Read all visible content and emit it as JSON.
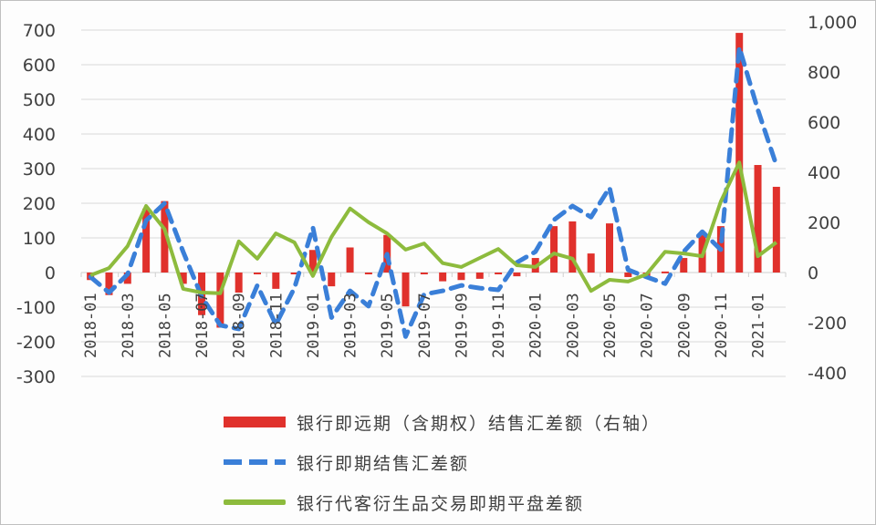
{
  "chart_data": {
    "type": "bar+line",
    "title": "",
    "categories": [
      "2018-01",
      "2018-02",
      "2018-03",
      "2018-04",
      "2018-05",
      "2018-06",
      "2018-07",
      "2018-08",
      "2018-09",
      "2018-10",
      "2018-11",
      "2018-12",
      "2019-01",
      "2019-02",
      "2019-03",
      "2019-04",
      "2019-05",
      "2019-06",
      "2019-07",
      "2019-08",
      "2019-09",
      "2019-10",
      "2019-11",
      "2019-12",
      "2020-01",
      "2020-02",
      "2020-03",
      "2020-04",
      "2020-05",
      "2020-06",
      "2020-07",
      "2020-08",
      "2020-09",
      "2020-10",
      "2020-11",
      "2020-12",
      "2021-01",
      "2021-02"
    ],
    "x_tick_labels": [
      "2018-01",
      "2018-03",
      "2018-05",
      "2018-07",
      "2018-09",
      "2018-11",
      "2019-01",
      "2019-03",
      "2019-05",
      "2019-07",
      "2019-09",
      "2019-11",
      "2020-01",
      "2020-03",
      "2020-05",
      "2020-07",
      "2020-09",
      "2020-11",
      "2021-01"
    ],
    "left_axis": {
      "ylim": [
        -300,
        700
      ],
      "ticks": [
        "700",
        "600",
        "500",
        "400",
        "300",
        "200",
        "100",
        "0",
        "-100",
        "-200",
        "-300"
      ]
    },
    "right_axis": {
      "ylim": [
        -400,
        1000
      ],
      "ticks": [
        "1,000",
        "800",
        "600",
        "400",
        "200",
        "0",
        "-200",
        "-400"
      ]
    },
    "grid": true,
    "legend_position": "bottom",
    "series": [
      {
        "name": "银行即远期（含期权）结售汇差额（右轴）",
        "type": "bar",
        "axis": "right",
        "color": "#e0312c",
        "values": [
          -30,
          -90,
          -45,
          255,
          285,
          -45,
          -170,
          -220,
          -80,
          -5,
          -65,
          -7,
          90,
          -55,
          100,
          -7,
          150,
          -135,
          -7,
          -35,
          -30,
          -25,
          -4,
          -15,
          58,
          185,
          204,
          76,
          196,
          -18,
          -15,
          4,
          58,
          149,
          185,
          956,
          429,
          342
        ]
      },
      {
        "name": "银行即期结售汇差额",
        "type": "line",
        "style": "dashed",
        "axis": "left",
        "color": "#3a7fd8",
        "values": [
          -13,
          -58,
          -5,
          150,
          200,
          60,
          -70,
          -152,
          -163,
          -37,
          -150,
          -45,
          130,
          -130,
          -53,
          -97,
          53,
          -185,
          -63,
          -53,
          -37,
          -45,
          -50,
          29,
          60,
          152,
          192,
          160,
          245,
          8,
          -13,
          -32,
          60,
          118,
          66,
          650,
          470,
          310
        ]
      },
      {
        "name": "银行代客衍生品交易即期平盘差额",
        "type": "line",
        "style": "solid",
        "axis": "left",
        "color": "#8dbb3d",
        "values": [
          -8,
          13,
          76,
          192,
          125,
          -47,
          -58,
          -60,
          90,
          40,
          113,
          87,
          -10,
          103,
          185,
          145,
          113,
          66,
          84,
          27,
          16,
          42,
          68,
          21,
          16,
          55,
          40,
          -53,
          -21,
          -26,
          -5,
          60,
          55,
          47,
          205,
          318,
          47,
          87
        ]
      }
    ]
  },
  "legend": {
    "items": [
      {
        "label": "银行即远期（含期权）结售汇差额（右轴）"
      },
      {
        "label": "银行即期结售汇差额"
      },
      {
        "label": "银行代客衍生品交易即期平盘差额"
      }
    ]
  }
}
